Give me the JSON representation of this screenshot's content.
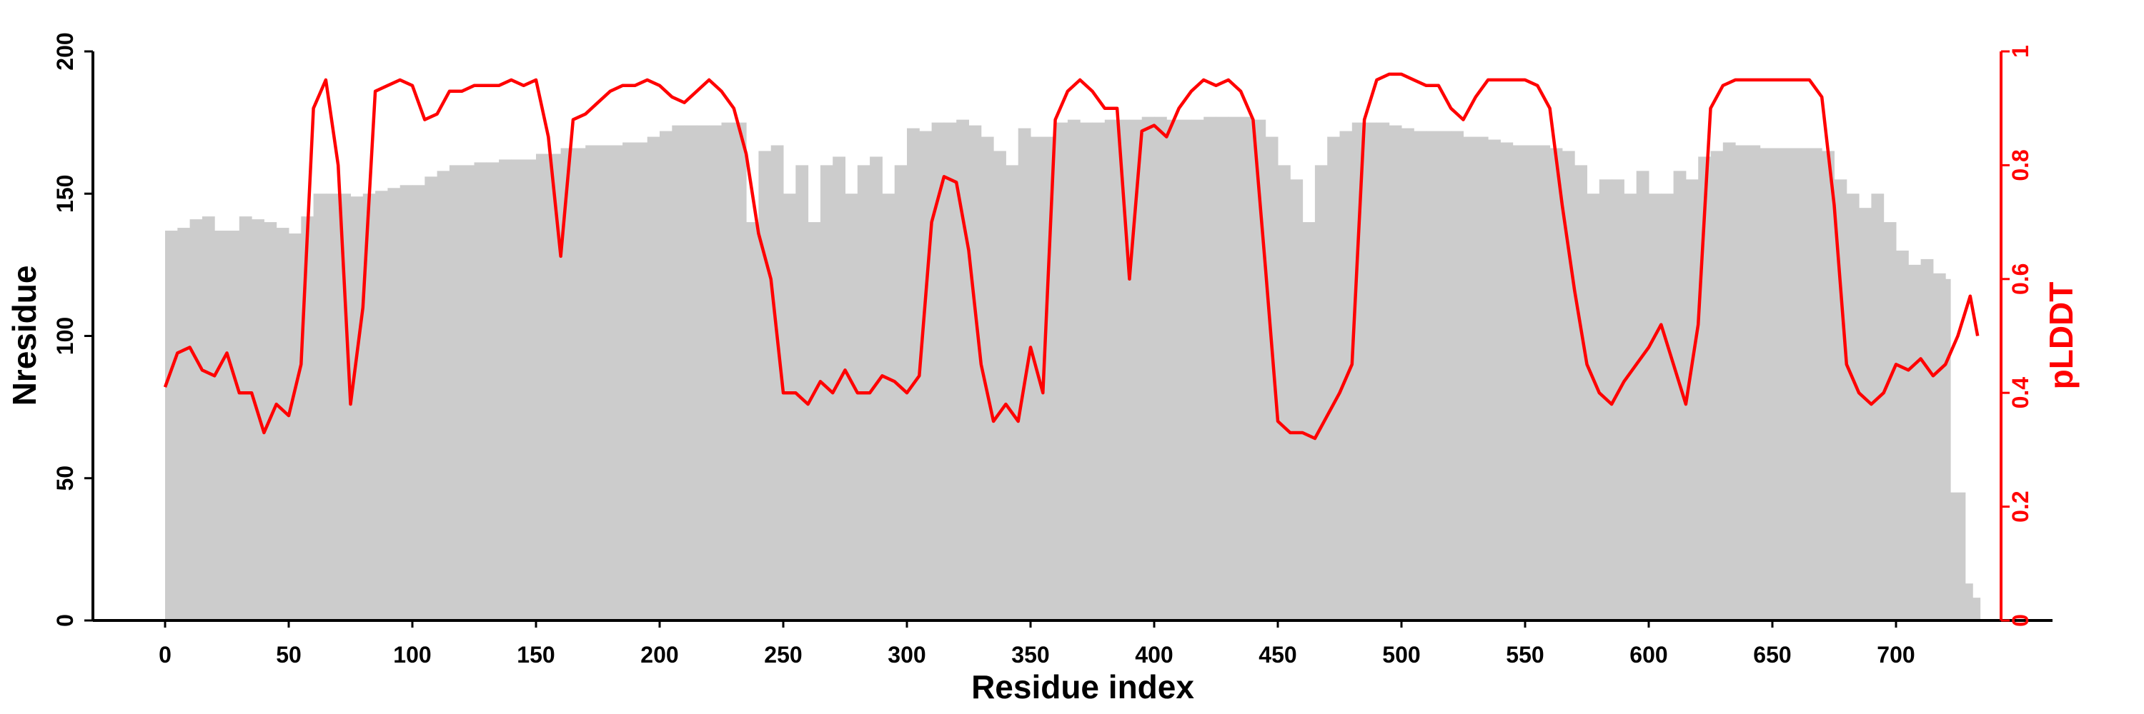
{
  "chart_data": {
    "type": "bar+line",
    "xlabel": "Residue index",
    "ylabel": "Nresidue",
    "y2label": "pLDDT",
    "xlim": [
      -30,
      760
    ],
    "ylim": [
      0,
      200
    ],
    "y2lim": [
      0,
      1
    ],
    "xticks": [
      "0",
      "50",
      "100",
      "150",
      "200",
      "250",
      "300",
      "350",
      "400",
      "450",
      "500",
      "550",
      "600",
      "650",
      "700"
    ],
    "yticks": [
      "0",
      "50",
      "100",
      "150",
      "200"
    ],
    "y2ticks": [
      "0",
      "0.2",
      "0.4",
      "0.6",
      "0.8",
      "1"
    ],
    "colors": {
      "bars": "#cccccc",
      "line": "#ff0000",
      "axis": "#000000"
    },
    "nresidue": {
      "step": 5,
      "values": [
        137,
        138,
        141,
        142,
        137,
        137,
        142,
        141,
        140,
        138,
        136,
        142,
        150,
        150,
        150,
        149,
        150,
        151,
        152,
        153,
        153,
        156,
        158,
        160,
        160,
        161,
        161,
        162,
        162,
        162,
        164,
        164,
        166,
        166,
        167,
        167,
        167,
        168,
        168,
        170,
        172,
        174,
        174,
        174,
        174,
        175,
        175,
        140,
        165,
        167,
        150,
        160,
        140,
        160,
        163,
        150,
        160,
        163,
        150,
        160,
        173,
        172,
        175,
        175,
        176,
        174,
        170,
        165,
        160,
        173,
        170,
        170,
        175,
        176,
        175,
        175,
        176,
        176,
        176,
        177,
        177,
        176,
        176,
        176,
        177,
        177,
        177,
        177,
        176,
        170,
        160,
        155,
        140,
        160,
        170,
        172,
        175,
        175,
        175,
        174,
        173,
        172,
        172,
        172,
        172,
        170,
        170,
        169,
        168,
        167,
        167,
        167,
        166,
        165,
        160,
        150,
        155,
        155,
        150,
        158,
        150,
        150,
        158,
        155,
        163,
        165,
        168,
        167,
        167,
        166,
        166,
        166,
        166,
        166,
        165,
        155,
        150,
        145,
        150,
        140,
        130,
        125,
        127,
        122
      ],
      "tail": [
        [
          720,
          120
        ],
        [
          722,
          45
        ],
        [
          728,
          13
        ],
        [
          731,
          8
        ]
      ],
      "end": 734
    },
    "plddt": {
      "step": 5,
      "values": [
        0.41,
        0.47,
        0.48,
        0.44,
        0.43,
        0.47,
        0.4,
        0.4,
        0.33,
        0.38,
        0.36,
        0.45,
        0.9,
        0.95,
        0.8,
        0.38,
        0.55,
        0.93,
        0.94,
        0.95,
        0.94,
        0.88,
        0.89,
        0.93,
        0.93,
        0.94,
        0.94,
        0.94,
        0.95,
        0.94,
        0.95,
        0.85,
        0.64,
        0.88,
        0.89,
        0.91,
        0.93,
        0.94,
        0.94,
        0.95,
        0.94,
        0.92,
        0.91,
        0.93,
        0.95,
        0.93,
        0.9,
        0.82,
        0.68,
        0.6,
        0.4,
        0.4,
        0.38,
        0.42,
        0.4,
        0.44,
        0.4,
        0.4,
        0.43,
        0.42,
        0.4,
        0.43,
        0.7,
        0.78,
        0.77,
        0.65,
        0.45,
        0.35,
        0.38,
        0.35,
        0.48,
        0.4,
        0.88,
        0.93,
        0.95,
        0.93,
        0.9,
        0.9,
        0.6,
        0.86,
        0.87,
        0.85,
        0.9,
        0.93,
        0.95,
        0.94,
        0.95,
        0.93,
        0.88,
        0.62,
        0.35,
        0.33,
        0.33,
        0.32,
        0.36,
        0.4,
        0.45,
        0.88,
        0.95,
        0.96,
        0.96,
        0.95,
        0.94,
        0.94,
        0.9,
        0.88,
        0.92,
        0.95,
        0.95,
        0.95,
        0.95,
        0.94,
        0.9,
        0.73,
        0.58,
        0.45,
        0.4,
        0.38,
        0.42,
        0.45,
        0.48,
        0.52,
        0.45,
        0.38,
        0.52,
        0.9,
        0.94,
        0.95,
        0.95,
        0.95,
        0.95,
        0.95,
        0.95,
        0.95,
        0.92,
        0.73,
        0.45,
        0.4,
        0.38,
        0.4,
        0.45,
        0.44,
        0.46,
        0.43,
        0.45,
        0.5,
        0.57
      ],
      "last": [
        733,
        0.5
      ]
    }
  }
}
